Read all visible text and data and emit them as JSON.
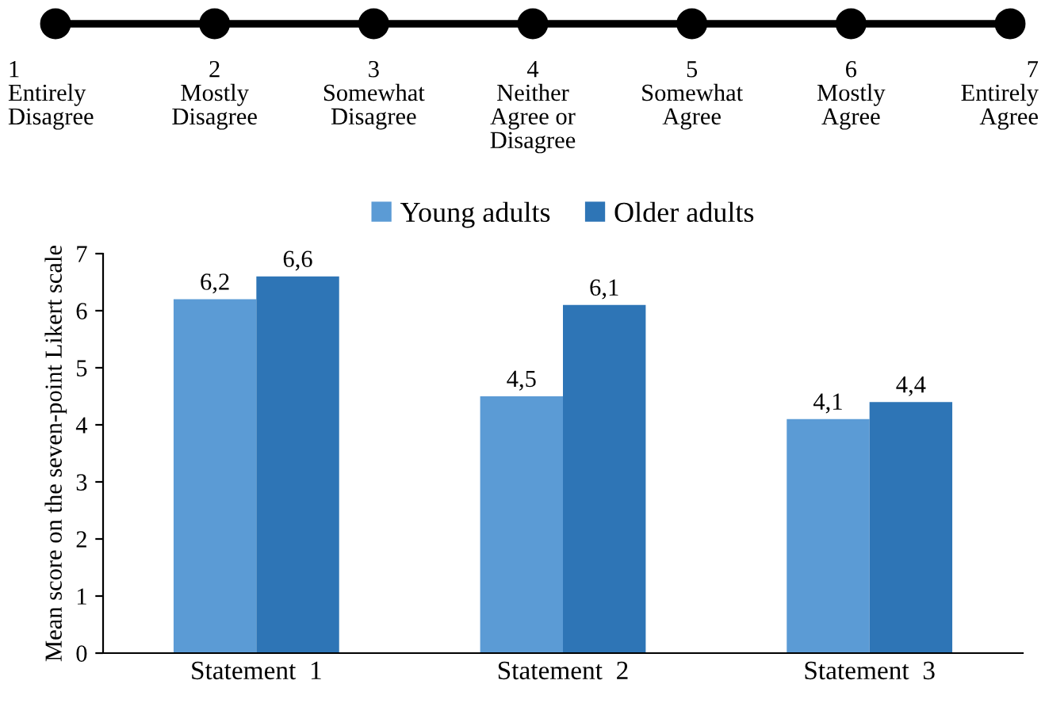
{
  "chart_data": {
    "type": "bar",
    "annotations": [
      "1\nEntirely\nDisagree",
      "2\nMostly\nDisagree",
      "3\nSomewhat\nDisagree",
      "4\nNeither\nAgree or\nDisagree",
      "5\nSomewhat\nAgree",
      "6\nMostly\nAgree",
      "7\nEntirely\nAgree"
    ],
    "ylabel": "Mean score on the seven-point Likert scale",
    "categories": [
      "Statement  1",
      "Statement  2",
      "Statement  3"
    ],
    "series": [
      {
        "name": "Young adults",
        "color": "#5b9bd5",
        "values": [
          6.2,
          4.5,
          4.1
        ],
        "value_labels": [
          "6,2",
          "4,5",
          "4,1"
        ]
      },
      {
        "name": "Older adults",
        "color": "#2e75b6",
        "values": [
          6.6,
          6.1,
          4.4
        ],
        "value_labels": [
          "6,6",
          "6,1",
          "4,4"
        ]
      }
    ],
    "ylim": [
      0,
      7
    ],
    "yticks": [
      0,
      1,
      2,
      3,
      4,
      5,
      6,
      7
    ],
    "grid": false,
    "legend": "top"
  }
}
